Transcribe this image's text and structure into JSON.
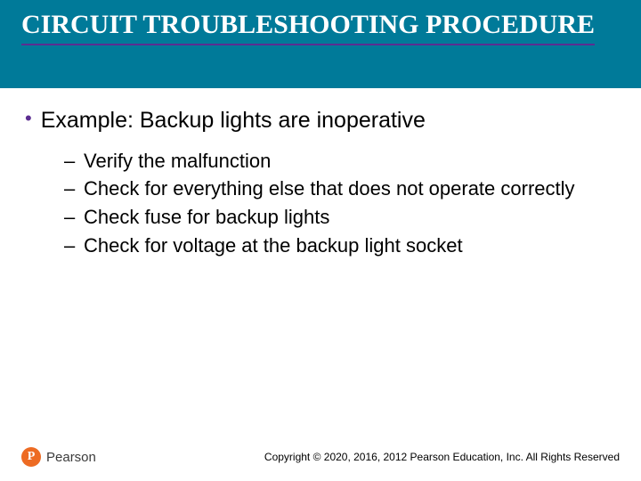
{
  "colors": {
    "title_bg": "#007a99",
    "accent": "#5c2d91",
    "logo_circle": "#ed6b23",
    "text": "#000000",
    "title_text": "#ffffff"
  },
  "typography": {
    "title_family": "Georgia, serif",
    "title_size_pt": 30,
    "title_weight": "bold",
    "body_family": "Arial, sans-serif",
    "bullet_size_pt": 25,
    "sub_size_pt": 22,
    "copyright_size_pt": 12
  },
  "title": "CIRCUIT TROUBLESHOOTING PROCEDURE",
  "main_bullet": "Example: Backup lights are inoperative",
  "sub_bullets": [
    "Verify the malfunction",
    "Check for everything else that does not operate correctly",
    "Check fuse for backup lights",
    "Check for voltage at the backup light socket"
  ],
  "logo": {
    "badge": "P",
    "name": "Pearson"
  },
  "copyright": "Copyright © 2020, 2016, 2012 Pearson Education, Inc. All Rights Reserved"
}
